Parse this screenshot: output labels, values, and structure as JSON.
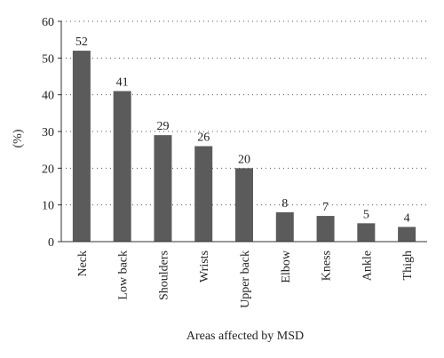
{
  "chart_data": {
    "type": "bar",
    "categories": [
      "Neck",
      "Low back",
      "Shoulders",
      "Wrists",
      "Upper back",
      "Elbow",
      "Kness",
      "Ankle",
      "Thigh"
    ],
    "values": [
      52,
      41,
      29,
      26,
      20,
      8,
      7,
      5,
      4
    ],
    "title": "",
    "xlabel": "Areas affected by MSD",
    "ylabel": "(%)",
    "ylim": [
      0,
      60
    ],
    "yticks": [
      0,
      10,
      20,
      30,
      40,
      50,
      60
    ],
    "grid": true,
    "legend": "none",
    "bar_color": "#5b5b5b"
  }
}
